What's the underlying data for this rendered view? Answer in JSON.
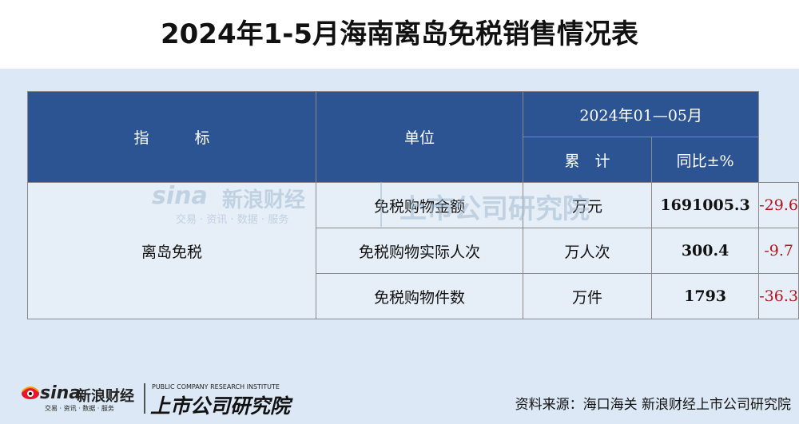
{
  "title": "2024年1-5月海南离岛免税销售情况表",
  "table": {
    "header": {
      "indicator": "指　　　标",
      "unit": "单位",
      "period": "2024年01—05月",
      "cumulative": "累　计",
      "yoy": "同比±%"
    },
    "group_label": "离岛免税",
    "rows": [
      {
        "name": "免税购物金额",
        "unit": "万元",
        "value": "1691005.3",
        "yoy": "-29.6"
      },
      {
        "name": "免税购物实际人次",
        "unit": "万人次",
        "value": "300.4",
        "yoy": "-9.7"
      },
      {
        "name": "免税购物件数",
        "unit": "万件",
        "value": "1793",
        "yoy": "-36.3"
      }
    ]
  },
  "watermark": {
    "sina": "sina",
    "sina_cn": "新浪财经",
    "sina_sub": "交易 · 资讯 · 数据 · 服务",
    "research": "上市公司研究院"
  },
  "footer": {
    "logo_sina": "sina",
    "logo_sina_cn": "新浪财经",
    "logo_sina_sub": "交易 · 资讯 · 数据 · 服务",
    "logo_research": "上市公司研究院",
    "logo_research_en": "PUBLIC COMPANY RESEARCH INSTITUTE",
    "source": "资料来源：海口海关 新浪财经上市公司研究院"
  },
  "colors": {
    "header_bg": "#2d5492",
    "cell_bg": "#e6eef7",
    "negative": "#b3121b",
    "page_bg": "#dce8f5"
  }
}
